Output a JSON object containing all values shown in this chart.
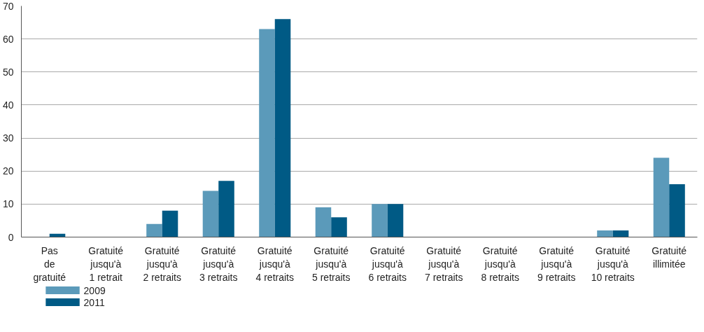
{
  "chart_data": {
    "type": "bar",
    "categories": [
      "Pas\nde\ngratuité",
      "Gratuité\njusqu'à\n1 retrait",
      "Gratuité\njusqu'à\n2 retraits",
      "Gratuité\njusqu'à\n3 retraits",
      "Gratuité\njusqu'à\n4 retraits",
      "Gratuité\njusqu'à\n5 retraits",
      "Gratuité\njusqu'à\n6 retraits",
      "Gratuité\njusqu'à\n7 retraits",
      "Gratuité\njusqu'à\n8 retraits",
      "Gratuité\njusqu'à\n9 retraits",
      "Gratuité\njusqu'à\n10 retraits",
      "Gratuité\nillimitée"
    ],
    "series": [
      {
        "name": "2009",
        "color": "#5b9aba",
        "values": [
          0,
          0,
          4,
          14,
          63,
          9,
          10,
          0,
          0,
          0,
          2,
          24
        ]
      },
      {
        "name": "2011",
        "color": "#005a85",
        "values": [
          1,
          0,
          8,
          17,
          66,
          6,
          10,
          0,
          0,
          0,
          2,
          16
        ]
      }
    ],
    "ylim": [
      0,
      70
    ],
    "yticks": [
      0,
      10,
      20,
      30,
      40,
      50,
      60,
      70
    ],
    "grid": "y",
    "legend": "bottom left"
  }
}
